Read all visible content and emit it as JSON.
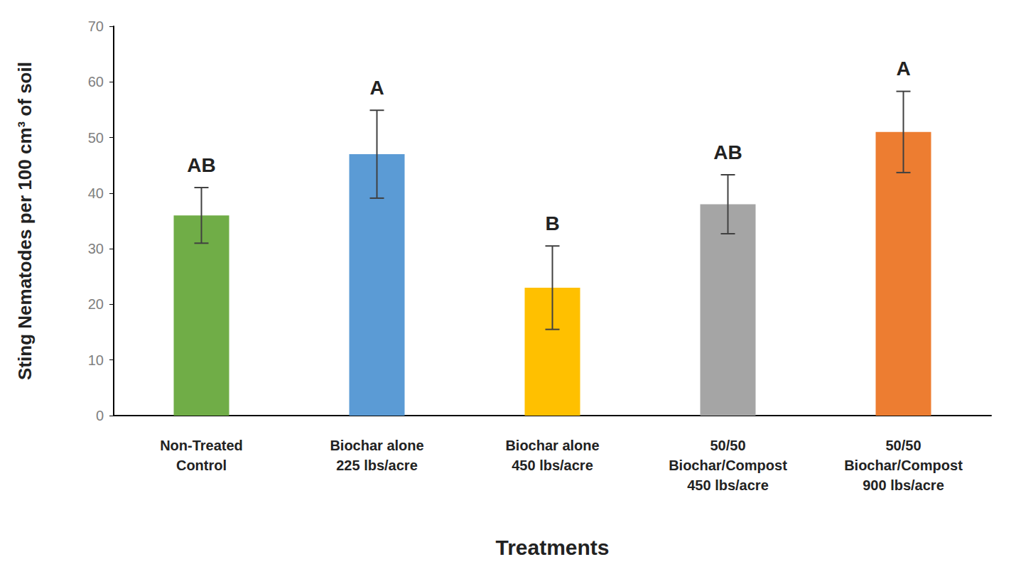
{
  "chart_data": {
    "type": "bar",
    "categories": [
      "Non-Treated\nControl",
      "Biochar alone\n225 lbs/acre",
      "Biochar alone\n450 lbs/acre",
      "50/50\nBiochar/Compost\n450 lbs/acre",
      "50/50\nBiochar/Compost\n900 lbs/acre"
    ],
    "values": [
      36,
      47,
      23,
      38,
      51
    ],
    "errors": [
      5,
      7.9,
      7.5,
      5.3,
      7.3
    ],
    "annotations": [
      "AB",
      "A",
      "B",
      "AB",
      "A"
    ],
    "colors": [
      "#70ad47",
      "#5b9bd5",
      "#ffc000",
      "#a5a5a5",
      "#ed7d31"
    ],
    "x_label": "Treatments",
    "y_label": "Sting Nematodes per 100 cm³ of soil",
    "ylim": [
      0,
      70
    ],
    "yticks": [
      0,
      10,
      20,
      30,
      40,
      50,
      60,
      70
    ],
    "grid": false
  }
}
